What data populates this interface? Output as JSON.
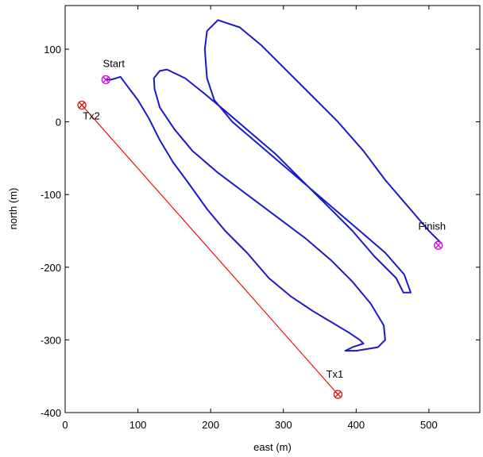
{
  "chart_data": {
    "type": "line",
    "title": "",
    "xlabel": "east (m)",
    "ylabel": "north (m)",
    "xlim": [
      0,
      570
    ],
    "ylim": [
      -400,
      160
    ],
    "xticks": [
      0,
      100,
      200,
      300,
      400,
      500
    ],
    "yticks": [
      100,
      0,
      -100,
      -200,
      -300,
      -400
    ],
    "xtick_labels": [
      "0",
      "100",
      "200",
      "300",
      "400",
      "500"
    ],
    "ytick_labels": [
      "100",
      "0",
      "-100",
      "-200",
      "-300",
      "-400"
    ],
    "grid": false,
    "series": [
      {
        "color": "#1a1acc",
        "style": "line",
        "x": [
          58,
          63,
          70,
          76,
          85,
          100,
          115,
          130,
          148,
          170,
          195,
          220,
          250,
          280,
          310,
          340,
          365,
          390,
          405,
          410,
          395,
          385,
          400,
          430,
          440,
          438,
          420,
          395,
          365,
          330,
          290,
          250,
          210,
          175,
          150,
          130,
          123,
          122,
          130,
          140,
          165,
          190,
          220,
          255,
          290,
          325,
          360,
          395,
          425,
          455,
          465,
          475,
          466,
          440,
          405,
          370,
          335,
          300,
          265,
          230,
          205,
          195,
          192,
          195,
          210,
          240,
          270,
          305,
          340,
          375,
          410,
          440,
          470,
          500,
          515
        ],
        "y": [
          58,
          58,
          60,
          62,
          50,
          30,
          5,
          -25,
          -55,
          -85,
          -120,
          -150,
          -180,
          -215,
          -240,
          -260,
          -275,
          -290,
          -300,
          -305,
          -310,
          -315,
          -315,
          -310,
          -300,
          -280,
          -250,
          -220,
          -190,
          -160,
          -130,
          -100,
          -70,
          -40,
          -10,
          20,
          45,
          60,
          70,
          72,
          60,
          40,
          15,
          -15,
          -45,
          -80,
          -115,
          -150,
          -185,
          -215,
          -235,
          -235,
          -210,
          -180,
          -150,
          -120,
          -90,
          -60,
          -30,
          0,
          30,
          60,
          100,
          125,
          140,
          130,
          105,
          70,
          35,
          0,
          -40,
          -80,
          -115,
          -150,
          -165
        ]
      },
      {
        "color": "#ee1111",
        "style": "line",
        "x": [
          23,
          375
        ],
        "y": [
          23,
          -375
        ]
      }
    ],
    "markers": [
      {
        "label": "Start",
        "x": 56,
        "y": 58,
        "color": "#e000e0"
      },
      {
        "label": "Finish",
        "x": 513,
        "y": -170,
        "color": "#e000e0"
      },
      {
        "label": "Tx2",
        "x": 23,
        "y": 23,
        "color": "#dd1111"
      },
      {
        "label": "Tx1",
        "x": 375,
        "y": -375,
        "color": "#dd1111"
      }
    ]
  }
}
